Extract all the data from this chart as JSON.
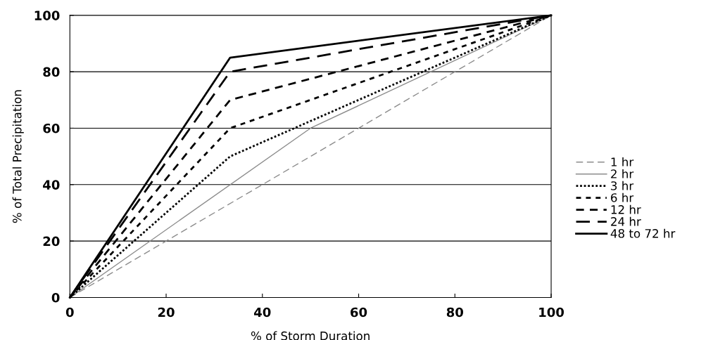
{
  "chart_data": {
    "type": "line",
    "xlabel": "% of Storm Duration",
    "ylabel": "% of Total Precipitation",
    "xlim": [
      0,
      100
    ],
    "ylim": [
      0,
      100
    ],
    "xticks": [
      0,
      20,
      40,
      60,
      80,
      100
    ],
    "yticks": [
      0,
      20,
      40,
      60,
      80,
      100
    ],
    "grid": "y",
    "legend": "right",
    "marker": "none",
    "series": [
      {
        "name": "1 hr",
        "color": "#8c8c8c",
        "line_style": "longdash",
        "x": [
          0,
          100
        ],
        "values": [
          0,
          100
        ]
      },
      {
        "name": "2 hr",
        "color": "#8c8c8c",
        "line_style": "solid",
        "x": [
          0,
          50,
          100
        ],
        "values": [
          0,
          60,
          100
        ]
      },
      {
        "name": "3 hr",
        "color": "#000000",
        "line_style": "dotted",
        "x": [
          0,
          33.3,
          100
        ],
        "values": [
          0,
          50,
          100
        ]
      },
      {
        "name": "6 hr",
        "color": "#000000",
        "line_style": "shortdash",
        "x": [
          0,
          33.3,
          100
        ],
        "values": [
          0,
          60,
          100
        ]
      },
      {
        "name": "12 hr",
        "color": "#000000",
        "line_style": "dashed",
        "x": [
          0,
          33.3,
          100
        ],
        "values": [
          0,
          70,
          100
        ]
      },
      {
        "name": "24 hr",
        "color": "#000000",
        "line_style": "longdash",
        "x": [
          0,
          33.3,
          100
        ],
        "values": [
          0,
          80,
          100
        ]
      },
      {
        "name": "48 to 72 hr",
        "color": "#000000",
        "line_style": "solid",
        "x": [
          0,
          33.3,
          100
        ],
        "values": [
          0,
          85,
          100
        ]
      }
    ]
  }
}
